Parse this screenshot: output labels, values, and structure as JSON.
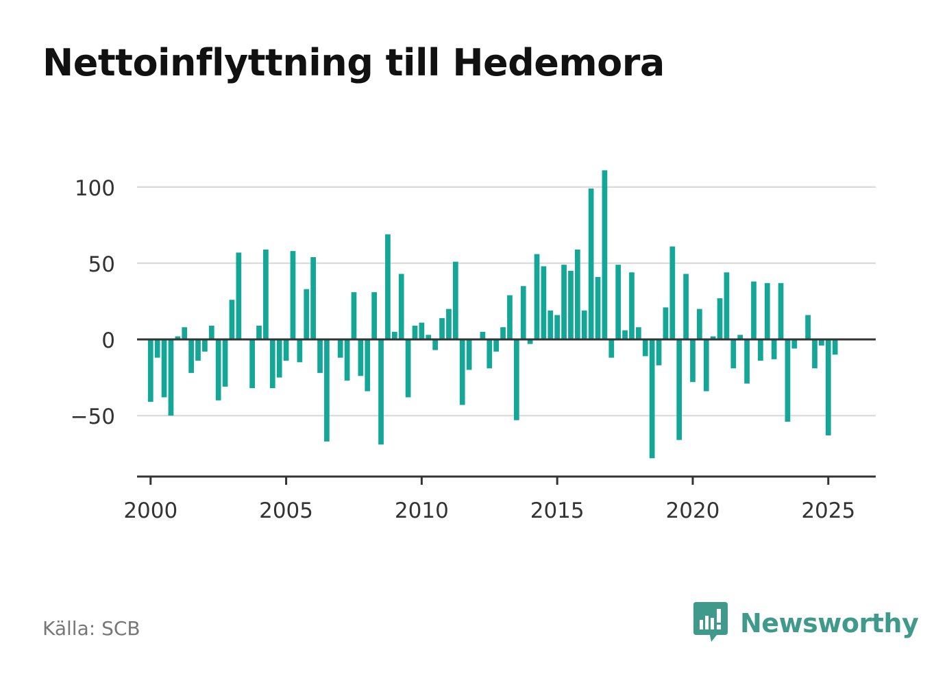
{
  "title": "Nettoinflyttning till Hedemora",
  "source": "Källa: SCB",
  "brand": {
    "name": "Newsworthy",
    "icon": "newsworthy-logo-icon",
    "color": "#3f9a8c"
  },
  "colors": {
    "bar": "#14a697",
    "grid": "#dddddd",
    "axis": "#333333",
    "tick_text": "#333333"
  },
  "chart_data": {
    "type": "bar",
    "xlim": [
      1999.5,
      2026.75
    ],
    "ylim": [
      -90,
      110
    ],
    "xticks": [
      2000,
      2005,
      2010,
      2015,
      2020,
      2025
    ],
    "yticks": [
      -50,
      0,
      50,
      100
    ],
    "ytick_labels": [
      "−50",
      "0",
      "50",
      "100"
    ],
    "grid": true,
    "x": [
      2000.0,
      2000.25,
      2000.5,
      2000.75,
      2001.0,
      2001.25,
      2001.5,
      2001.75,
      2002.0,
      2002.25,
      2002.5,
      2002.75,
      2003.0,
      2003.25,
      2003.5,
      2003.75,
      2004.0,
      2004.25,
      2004.5,
      2004.75,
      2005.0,
      2005.25,
      2005.5,
      2005.75,
      2006.0,
      2006.25,
      2006.5,
      2006.75,
      2007.0,
      2007.25,
      2007.5,
      2007.75,
      2008.0,
      2008.25,
      2008.5,
      2008.75,
      2009.0,
      2009.25,
      2009.5,
      2009.75,
      2010.0,
      2010.25,
      2010.5,
      2010.75,
      2011.0,
      2011.25,
      2011.5,
      2011.75,
      2012.0,
      2012.25,
      2012.5,
      2012.75,
      2013.0,
      2013.25,
      2013.5,
      2013.75,
      2014.0,
      2014.25,
      2014.5,
      2014.75,
      2015.0,
      2015.25,
      2015.5,
      2015.75,
      2016.0,
      2016.25,
      2016.5,
      2016.75,
      2017.0,
      2017.25,
      2017.5,
      2017.75,
      2018.0,
      2018.25,
      2018.5,
      2018.75,
      2019.0,
      2019.25,
      2019.5,
      2019.75,
      2020.0,
      2020.25,
      2020.5,
      2020.75,
      2021.0,
      2021.25,
      2021.5,
      2021.75,
      2022.0,
      2022.25,
      2022.5,
      2022.75,
      2023.0,
      2023.25,
      2023.5,
      2023.75,
      2024.0,
      2024.25,
      2024.5,
      2024.75,
      2025.0,
      2025.25
    ],
    "values": [
      -41,
      -12,
      -38,
      -50,
      2,
      8,
      -22,
      -14,
      -8,
      9,
      -40,
      -31,
      26,
      57,
      0,
      -32,
      9,
      59,
      -32,
      -25,
      -14,
      58,
      -15,
      33,
      54,
      -22,
      -67,
      0,
      -12,
      -27,
      31,
      -24,
      -34,
      31,
      -69,
      69,
      5,
      43,
      -38,
      9,
      11,
      3,
      -7,
      14,
      20,
      51,
      -43,
      -20,
      0,
      5,
      -19,
      -8,
      8,
      29,
      -53,
      35,
      -3,
      56,
      48,
      19,
      16,
      49,
      45,
      59,
      19,
      99,
      41,
      111,
      -12,
      49,
      6,
      44,
      8,
      -11,
      -78,
      -17,
      21,
      61,
      -66,
      43,
      -28,
      20,
      -34,
      2,
      27,
      44,
      -19,
      3,
      -29,
      38,
      -14,
      37,
      -13,
      37,
      -54,
      -6,
      0,
      16,
      -19,
      -4,
      -63,
      -10
    ]
  }
}
